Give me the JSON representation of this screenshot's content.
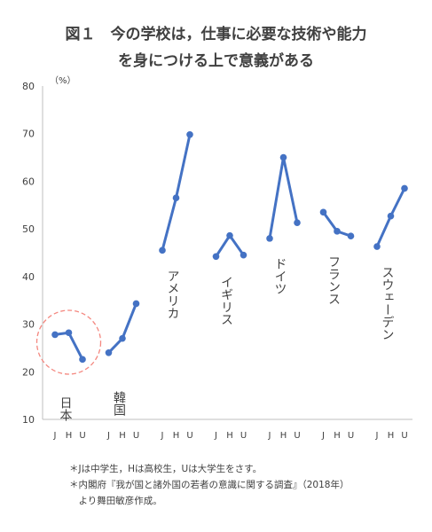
{
  "title": {
    "line1": "図１　今の学校は，仕事に必要な技術や能力",
    "line2": "を身につける上で意義がある"
  },
  "notes": [
    "＊Jは中学生，Hは高校生，Uは大学生をさす。",
    "＊内閣府『我が国と諸外国の若者の意識に関する調査』（2018年）",
    "　より舞田敏彦作成。"
  ],
  "colors": {
    "line": "#4472C4",
    "highlight": "#F4877F",
    "axis": "#BFBFBF",
    "text": "#404040"
  },
  "chart_data": {
    "type": "line",
    "y_unit": "（%）",
    "ylim": [
      10,
      80
    ],
    "yticks": [
      10,
      20,
      30,
      40,
      50,
      60,
      70,
      80
    ],
    "grid": false,
    "legend": "none",
    "x_sub_labels": [
      "J",
      "H",
      "U"
    ],
    "series": [
      {
        "name": "日本",
        "values": [
          27.8,
          28.2,
          22.6
        ],
        "highlighted": true
      },
      {
        "name": "韓国",
        "values": [
          24.0,
          27.0,
          34.3
        ]
      },
      {
        "name": "アメリカ",
        "values": [
          45.5,
          56.5,
          69.8
        ]
      },
      {
        "name": "イギリス",
        "values": [
          44.2,
          48.6,
          44.5
        ]
      },
      {
        "name": "ドイツ",
        "values": [
          48.0,
          65.0,
          51.3
        ]
      },
      {
        "name": "フランス",
        "values": [
          53.5,
          49.5,
          48.5
        ]
      },
      {
        "name": "スウェーデン",
        "values": [
          46.3,
          52.7,
          58.5
        ]
      }
    ]
  }
}
